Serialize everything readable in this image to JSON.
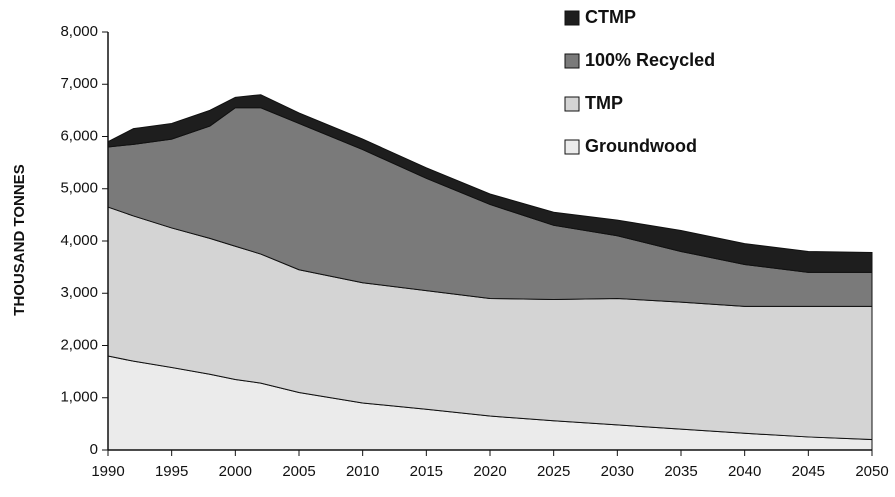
{
  "chart_data": {
    "type": "stacked-area",
    "y_label": "THOUSAND TONNES",
    "x": [
      1990,
      1992,
      1995,
      1998,
      2000,
      2002,
      2005,
      2010,
      2015,
      2020,
      2025,
      2030,
      2035,
      2040,
      2045,
      2050
    ],
    "series": [
      {
        "name": "Groundwood",
        "color": "#ebebeb",
        "values": [
          1800,
          1700,
          1580,
          1450,
          1350,
          1280,
          1100,
          900,
          780,
          650,
          560,
          480,
          400,
          320,
          250,
          200
        ]
      },
      {
        "name": "TMP",
        "color": "#d4d4d4",
        "values": [
          2850,
          2780,
          2670,
          2600,
          2550,
          2470,
          2350,
          2300,
          2270,
          2250,
          2320,
          2420,
          2430,
          2430,
          2500,
          2550
        ]
      },
      {
        "name": "100% Recycled",
        "color": "#7a7a7a",
        "values": [
          1150,
          1370,
          1700,
          2150,
          2650,
          2800,
          2800,
          2550,
          2150,
          1800,
          1420,
          1200,
          970,
          800,
          650,
          650
        ]
      },
      {
        "name": "CTMP",
        "color": "#1e1e1e",
        "values": [
          100,
          300,
          300,
          300,
          200,
          250,
          200,
          200,
          200,
          200,
          250,
          300,
          400,
          400,
          400,
          380
        ]
      }
    ],
    "xlim": [
      1990,
      2050
    ],
    "xticks": [
      1990,
      1995,
      2000,
      2005,
      2010,
      2015,
      2020,
      2025,
      2030,
      2035,
      2040,
      2045,
      2050
    ],
    "ylim": [
      0,
      8000
    ],
    "yticks": [
      0,
      {
        "value": 1000,
        "label": "1,000"
      },
      {
        "value": 2000,
        "label": "2,000"
      },
      {
        "value": 3000,
        "label": "3,000"
      },
      {
        "value": 4000,
        "label": "4,000"
      },
      {
        "value": 5000,
        "label": "5,000"
      },
      {
        "value": 6000,
        "label": "6,000"
      },
      {
        "value": 7000,
        "label": "7,000"
      },
      {
        "value": 8000,
        "label": "8,000"
      }
    ],
    "legend": "top-right"
  }
}
